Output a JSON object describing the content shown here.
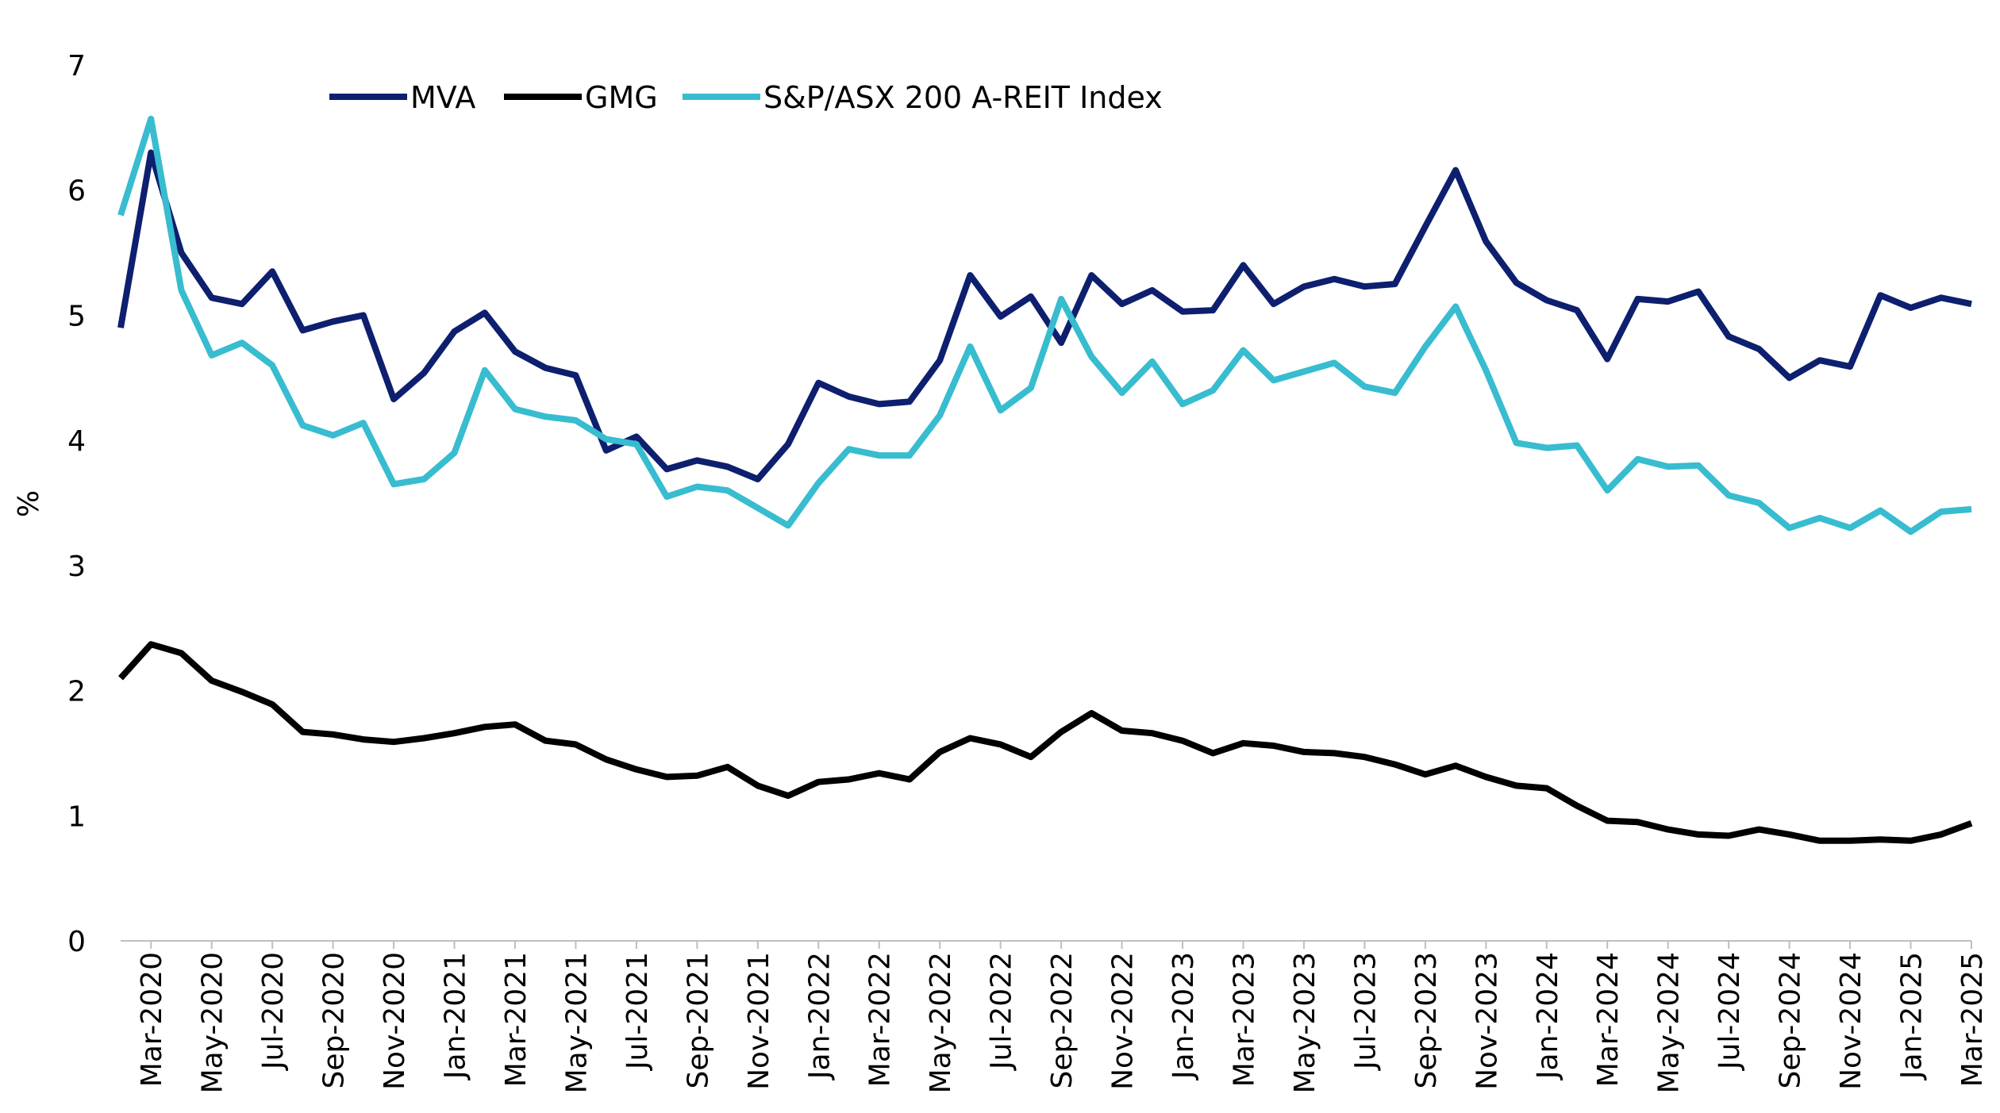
{
  "chart_data": {
    "type": "line",
    "ylabel": "%",
    "ylim": [
      0,
      7
    ],
    "yticks": [
      "0",
      "1",
      "2",
      "3",
      "4",
      "5",
      "6",
      "7"
    ],
    "x": [
      "Feb-2020",
      "Mar-2020",
      "Apr-2020",
      "May-2020",
      "Jun-2020",
      "Jul-2020",
      "Aug-2020",
      "Sep-2020",
      "Oct-2020",
      "Nov-2020",
      "Dec-2020",
      "Jan-2021",
      "Feb-2021",
      "Mar-2021",
      "Apr-2021",
      "May-2021",
      "Jun-2021",
      "Jul-2021",
      "Aug-2021",
      "Sep-2021",
      "Oct-2021",
      "Nov-2021",
      "Dec-2021",
      "Jan-2022",
      "Feb-2022",
      "Mar-2022",
      "Apr-2022",
      "May-2022",
      "Jun-2022",
      "Jul-2022",
      "Aug-2022",
      "Sep-2022",
      "Oct-2022",
      "Nov-2022",
      "Dec-2022",
      "Jan-2023",
      "Feb-2023",
      "Mar-2023",
      "Apr-2023",
      "May-2023",
      "Jun-2023",
      "Jul-2023",
      "Aug-2023",
      "Sep-2023",
      "Oct-2023",
      "Nov-2023",
      "Dec-2023",
      "Jan-2024",
      "Feb-2024",
      "Mar-2024",
      "Apr-2024",
      "May-2024",
      "Jun-2024",
      "Jul-2024",
      "Aug-2024",
      "Sep-2024",
      "Oct-2024",
      "Nov-2024",
      "Dec-2024",
      "Jan-2025",
      "Feb-2025",
      "Mar-2025"
    ],
    "xtick_labels": [
      "Mar-2020",
      "May-2020",
      "Jul-2020",
      "Sep-2020",
      "Nov-2020",
      "Jan-2021",
      "Mar-2021",
      "May-2021",
      "Jul-2021",
      "Sep-2021",
      "Nov-2021",
      "Jan-2022",
      "Mar-2022",
      "May-2022",
      "Jul-2022",
      "Sep-2022",
      "Nov-2022",
      "Jan-2023",
      "Mar-2023",
      "May-2023",
      "Jul-2023",
      "Sep-2023",
      "Nov-2023",
      "Jan-2024",
      "Mar-2024",
      "May-2024",
      "Jul-2024",
      "Sep-2024",
      "Nov-2024",
      "Jan-2025",
      "Mar-2025"
    ],
    "legend_position": "top-left",
    "grid": false,
    "series": [
      {
        "name": "MVA",
        "color": "#0d1f6e",
        "values": [
          4.9,
          6.3,
          5.5,
          5.14,
          5.09,
          5.35,
          4.88,
          4.95,
          5.0,
          4.33,
          4.54,
          4.87,
          5.02,
          4.71,
          4.58,
          4.52,
          3.92,
          4.03,
          3.77,
          3.84,
          3.79,
          3.69,
          3.97,
          4.46,
          4.35,
          4.29,
          4.31,
          4.64,
          5.32,
          4.99,
          5.15,
          4.78,
          5.32,
          5.09,
          5.2,
          5.03,
          5.04,
          5.4,
          5.09,
          5.23,
          5.29,
          5.23,
          5.25,
          5.71,
          6.16,
          5.59,
          5.26,
          5.12,
          5.04,
          4.65,
          5.13,
          5.11,
          5.19,
          4.83,
          4.73,
          4.5,
          4.64,
          4.59,
          5.16,
          5.06,
          5.14,
          5.09
        ]
      },
      {
        "name": "GMG",
        "color": "#000000",
        "values": [
          2.1,
          2.37,
          2.3,
          2.08,
          1.99,
          1.89,
          1.67,
          1.65,
          1.61,
          1.59,
          1.62,
          1.66,
          1.71,
          1.73,
          1.6,
          1.57,
          1.45,
          1.37,
          1.31,
          1.32,
          1.39,
          1.24,
          1.16,
          1.27,
          1.29,
          1.34,
          1.29,
          1.51,
          1.62,
          1.57,
          1.47,
          1.67,
          1.82,
          1.68,
          1.66,
          1.6,
          1.5,
          1.58,
          1.56,
          1.51,
          1.5,
          1.47,
          1.41,
          1.33,
          1.4,
          1.31,
          1.24,
          1.22,
          1.08,
          0.96,
          0.95,
          0.89,
          0.85,
          0.84,
          0.89,
          0.85,
          0.8,
          0.8,
          0.81,
          0.8,
          0.85,
          0.94
        ]
      },
      {
        "name": "S&P/ASX 200 A-REIT Index",
        "color": "#38bccf",
        "values": [
          5.8,
          6.57,
          5.2,
          4.68,
          4.78,
          4.6,
          4.12,
          4.04,
          4.14,
          3.65,
          3.69,
          3.9,
          4.56,
          4.25,
          4.19,
          4.16,
          4.01,
          3.97,
          3.55,
          3.63,
          3.6,
          3.46,
          3.32,
          3.66,
          3.93,
          3.88,
          3.88,
          4.2,
          4.75,
          4.24,
          4.42,
          5.13,
          4.67,
          4.38,
          4.63,
          4.29,
          4.4,
          4.72,
          4.48,
          4.55,
          4.62,
          4.43,
          4.38,
          4.75,
          5.07,
          4.56,
          3.98,
          3.94,
          3.96,
          3.6,
          3.85,
          3.79,
          3.8,
          3.56,
          3.5,
          3.3,
          3.38,
          3.3,
          3.44,
          3.27,
          3.43,
          3.45
        ]
      }
    ]
  }
}
